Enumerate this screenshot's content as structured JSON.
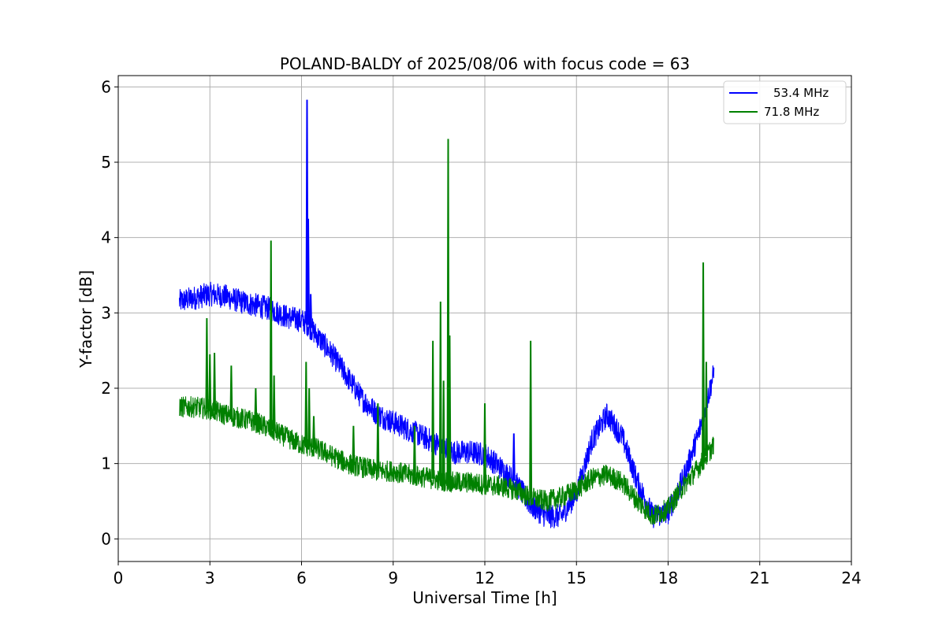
{
  "chart_data": {
    "type": "line",
    "title": "POLAND-BALDY of 2025/08/06 with focus code = 63",
    "xlabel": "Universal Time [h]",
    "ylabel": "Y-factor [dB]",
    "xlim": [
      0,
      24
    ],
    "ylim": [
      -0.3,
      6.15
    ],
    "xticks": [
      0,
      3,
      6,
      9,
      12,
      15,
      18,
      21,
      24
    ],
    "yticks": [
      0,
      1,
      2,
      3,
      4,
      5,
      6
    ],
    "grid": true,
    "legend_position": "top-right",
    "series": [
      {
        "name": "53.4 MHz",
        "color": "#0000ff",
        "band": 0.16,
        "x": [
          2.0,
          2.5,
          3.0,
          3.5,
          4.0,
          4.5,
          5.0,
          5.5,
          6.0,
          6.2,
          6.5,
          7.0,
          7.5,
          8.0,
          8.5,
          9.0,
          9.5,
          10.0,
          10.5,
          11.0,
          11.5,
          12.0,
          12.5,
          13.0,
          13.5,
          14.0,
          14.5,
          15.0,
          15.5,
          16.0,
          16.5,
          17.0,
          17.5,
          18.0,
          18.5,
          19.0,
          19.5
        ],
        "y": [
          3.15,
          3.2,
          3.25,
          3.22,
          3.15,
          3.1,
          3.05,
          2.95,
          2.9,
          2.85,
          2.7,
          2.45,
          2.15,
          1.85,
          1.65,
          1.55,
          1.45,
          1.35,
          1.25,
          1.15,
          1.15,
          1.12,
          0.95,
          0.75,
          0.45,
          0.3,
          0.3,
          0.6,
          1.3,
          1.65,
          1.35,
          0.75,
          0.3,
          0.35,
          0.8,
          1.4,
          2.2
        ],
        "spikes": [
          {
            "x": 6.18,
            "y": 5.83
          },
          {
            "x": 6.22,
            "y": 4.25
          },
          {
            "x": 6.3,
            "y": 3.25
          },
          {
            "x": 12.95,
            "y": 1.4
          }
        ]
      },
      {
        "name": "71.8 MHz",
        "color": "#008000",
        "band": 0.14,
        "x": [
          2.0,
          2.5,
          3.0,
          3.5,
          4.0,
          4.5,
          5.0,
          5.5,
          6.0,
          6.5,
          7.0,
          7.5,
          8.0,
          8.5,
          9.0,
          9.5,
          10.0,
          10.5,
          11.0,
          11.5,
          12.0,
          12.5,
          13.0,
          13.5,
          14.0,
          14.5,
          15.0,
          15.5,
          16.0,
          16.5,
          17.0,
          17.5,
          18.0,
          18.5,
          19.0,
          19.5
        ],
        "y": [
          1.75,
          1.75,
          1.72,
          1.65,
          1.6,
          1.55,
          1.45,
          1.35,
          1.25,
          1.2,
          1.1,
          1.0,
          0.95,
          0.9,
          0.9,
          0.85,
          0.82,
          0.78,
          0.75,
          0.75,
          0.72,
          0.7,
          0.65,
          0.55,
          0.5,
          0.55,
          0.65,
          0.8,
          0.85,
          0.75,
          0.5,
          0.3,
          0.4,
          0.7,
          0.95,
          1.25
        ],
        "spikes": [
          {
            "x": 2.9,
            "y": 2.93
          },
          {
            "x": 3.0,
            "y": 2.45
          },
          {
            "x": 3.15,
            "y": 2.47
          },
          {
            "x": 3.7,
            "y": 2.3
          },
          {
            "x": 4.5,
            "y": 2.0
          },
          {
            "x": 5.0,
            "y": 3.96
          },
          {
            "x": 5.1,
            "y": 2.17
          },
          {
            "x": 6.15,
            "y": 2.35
          },
          {
            "x": 6.25,
            "y": 2.0
          },
          {
            "x": 6.4,
            "y": 1.63
          },
          {
            "x": 7.7,
            "y": 1.5
          },
          {
            "x": 8.5,
            "y": 1.8
          },
          {
            "x": 9.7,
            "y": 1.5
          },
          {
            "x": 10.3,
            "y": 2.63
          },
          {
            "x": 10.55,
            "y": 3.15
          },
          {
            "x": 10.65,
            "y": 2.1
          },
          {
            "x": 10.8,
            "y": 5.31
          },
          {
            "x": 10.85,
            "y": 2.7
          },
          {
            "x": 12.0,
            "y": 1.8
          },
          {
            "x": 13.5,
            "y": 2.63
          },
          {
            "x": 19.15,
            "y": 3.67
          },
          {
            "x": 19.25,
            "y": 2.35
          }
        ]
      }
    ]
  }
}
